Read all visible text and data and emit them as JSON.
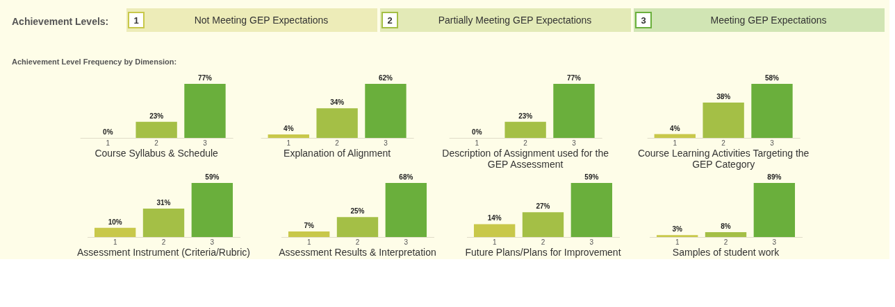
{
  "chart_data": [
    {
      "type": "other",
      "legend_title": "Achievement Levels:",
      "categories": [
        "1",
        "2",
        "3"
      ],
      "annotations": [
        "Not Meeting GEP Expectations",
        "Partially Meeting GEP Expectations",
        "Meeting GEP Expectations"
      ],
      "colors": [
        "#c8c84a",
        "#a4bf46",
        "#6aaf3c"
      ],
      "subtitle": "Achievement Level Frequency by Dimension:"
    },
    {
      "type": "bar",
      "title": "Course Syllabus & Schedule",
      "categories": [
        "1",
        "2",
        "3"
      ],
      "values": [
        0,
        23,
        77
      ],
      "value_labels": [
        "0%",
        "23%",
        "77%"
      ],
      "colors": [
        "#c8c84a",
        "#a4bf46",
        "#6aaf3c"
      ]
    },
    {
      "type": "bar",
      "title": "Explanation of Alignment",
      "categories": [
        "1",
        "2",
        "3"
      ],
      "values": [
        4,
        34,
        62
      ],
      "value_labels": [
        "4%",
        "34%",
        "62%"
      ],
      "colors": [
        "#c8c84a",
        "#a4bf46",
        "#6aaf3c"
      ]
    },
    {
      "type": "bar",
      "title": "Description of Assignment used for the GEP Assessment",
      "categories": [
        "1",
        "2",
        "3"
      ],
      "values": [
        0,
        23,
        77
      ],
      "value_labels": [
        "0%",
        "23%",
        "77%"
      ],
      "colors": [
        "#c8c84a",
        "#a4bf46",
        "#6aaf3c"
      ]
    },
    {
      "type": "bar",
      "title": "Course Learning Activities Targeting the GEP Category",
      "categories": [
        "1",
        "2",
        "3"
      ],
      "values": [
        4,
        38,
        58
      ],
      "value_labels": [
        "4%",
        "38%",
        "58%"
      ],
      "colors": [
        "#c8c84a",
        "#a4bf46",
        "#6aaf3c"
      ]
    },
    {
      "type": "bar",
      "title": "Assessment Instrument (Criteria/Rubric)",
      "categories": [
        "1",
        "2",
        "3"
      ],
      "values": [
        10,
        31,
        59
      ],
      "value_labels": [
        "10%",
        "31%",
        "59%"
      ],
      "colors": [
        "#c8c84a",
        "#a4bf46",
        "#6aaf3c"
      ]
    },
    {
      "type": "bar",
      "title": "Assessment Results & Interpretation",
      "categories": [
        "1",
        "2",
        "3"
      ],
      "values": [
        7,
        25,
        68
      ],
      "value_labels": [
        "7%",
        "25%",
        "68%"
      ],
      "colors": [
        "#c8c84a",
        "#a4bf46",
        "#6aaf3c"
      ]
    },
    {
      "type": "bar",
      "title": "Future Plans/Plans for Improvement",
      "categories": [
        "1",
        "2",
        "3"
      ],
      "values": [
        14,
        27,
        59
      ],
      "value_labels": [
        "14%",
        "27%",
        "59%"
      ],
      "colors": [
        "#c8c84a",
        "#a4bf46",
        "#6aaf3c"
      ]
    },
    {
      "type": "bar",
      "title": "Samples of student work",
      "categories": [
        "1",
        "2",
        "3"
      ],
      "values": [
        3,
        8,
        89
      ],
      "value_labels": [
        "3%",
        "8%",
        "89%"
      ],
      "colors": [
        "#c8c84a",
        "#a4bf46",
        "#6aaf3c"
      ]
    }
  ]
}
